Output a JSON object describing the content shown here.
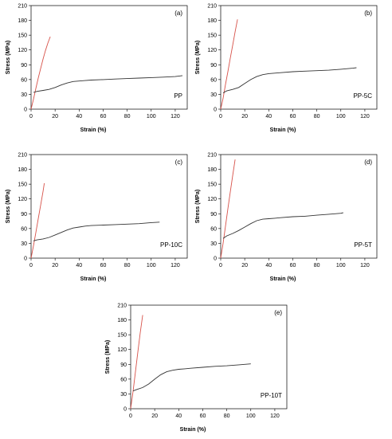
{
  "chart_data": [
    {
      "type": "line",
      "panel_letter": "(a)",
      "sample_label": "PP",
      "xlabel": "Strain (%)",
      "ylabel": "Stress (MPa)",
      "xlim": [
        0,
        130
      ],
      "ylim": [
        0,
        210
      ],
      "xticks": [
        0,
        20,
        40,
        60,
        80,
        100,
        120
      ],
      "yticks": [
        0,
        30,
        60,
        90,
        120,
        150,
        180,
        210
      ],
      "series": [
        {
          "color": "#d7524a",
          "x": [
            0,
            2,
            4,
            6,
            8,
            10,
            12,
            14,
            16
          ],
          "y": [
            0,
            20,
            42,
            63,
            83,
            102,
            119,
            134,
            147
          ]
        },
        {
          "color": "#333333",
          "x": [
            2,
            5,
            10,
            15,
            20,
            25,
            30,
            35,
            40,
            45,
            50,
            60,
            70,
            80,
            90,
            100,
            110,
            120,
            126
          ],
          "y": [
            34,
            36,
            38,
            40,
            44,
            49,
            53,
            56,
            57,
            58,
            59,
            60,
            61,
            62,
            63,
            64,
            65,
            66,
            68
          ]
        }
      ]
    },
    {
      "type": "line",
      "panel_letter": "(b)",
      "sample_label": "PP-5C",
      "xlabel": "Strain (%)",
      "ylabel": "Stress (MPa)",
      "xlim": [
        0,
        130
      ],
      "ylim": [
        0,
        210
      ],
      "xticks": [
        0,
        20,
        40,
        60,
        80,
        100,
        120
      ],
      "yticks": [
        0,
        30,
        60,
        90,
        120,
        150,
        180,
        210
      ],
      "series": [
        {
          "color": "#d7524a",
          "x": [
            0,
            2,
            4,
            6,
            8,
            10,
            12,
            14
          ],
          "y": [
            0,
            22,
            50,
            76,
            104,
            130,
            157,
            182
          ]
        },
        {
          "color": "#333333",
          "x": [
            2,
            5,
            10,
            15,
            20,
            25,
            30,
            35,
            40,
            45,
            50,
            60,
            70,
            80,
            90,
            100,
            110,
            113
          ],
          "y": [
            33,
            37,
            40,
            44,
            52,
            60,
            66,
            70,
            72,
            73,
            74,
            76,
            77,
            78,
            79,
            81,
            83,
            84
          ]
        }
      ]
    },
    {
      "type": "line",
      "panel_letter": "(c)",
      "sample_label": "PP-10C",
      "xlabel": "Strain (%)",
      "ylabel": "Stress (MPa)",
      "xlim": [
        0,
        130
      ],
      "ylim": [
        0,
        210
      ],
      "xticks": [
        0,
        20,
        40,
        60,
        80,
        100,
        120
      ],
      "yticks": [
        0,
        30,
        60,
        90,
        120,
        150,
        180,
        210
      ],
      "series": [
        {
          "color": "#d7524a",
          "x": [
            0,
            2,
            4,
            6,
            8,
            10,
            11
          ],
          "y": [
            0,
            25,
            52,
            80,
            108,
            136,
            152
          ]
        },
        {
          "color": "#333333",
          "x": [
            2,
            5,
            10,
            15,
            20,
            25,
            30,
            35,
            40,
            45,
            50,
            60,
            70,
            80,
            90,
            100,
            107
          ],
          "y": [
            35,
            37,
            39,
            42,
            47,
            52,
            57,
            61,
            63,
            65,
            66,
            67,
            68,
            69,
            70,
            72,
            73
          ]
        }
      ]
    },
    {
      "type": "line",
      "panel_letter": "(d)",
      "sample_label": "PP-5T",
      "xlabel": "Strain (%)",
      "ylabel": "Stress (MPa)",
      "xlim": [
        0,
        130
      ],
      "ylim": [
        0,
        210
      ],
      "xticks": [
        0,
        20,
        40,
        60,
        80,
        100,
        120
      ],
      "yticks": [
        0,
        30,
        60,
        90,
        120,
        150,
        180,
        210
      ],
      "series": [
        {
          "color": "#d7524a",
          "x": [
            0,
            2,
            4,
            6,
            8,
            10,
            12
          ],
          "y": [
            0,
            30,
            65,
            100,
            135,
            168,
            200
          ]
        },
        {
          "color": "#333333",
          "x": [
            2,
            5,
            10,
            15,
            20,
            25,
            30,
            35,
            40,
            45,
            50,
            60,
            70,
            80,
            90,
            100,
            102
          ],
          "y": [
            40,
            45,
            50,
            56,
            63,
            70,
            76,
            79,
            80,
            81,
            82,
            84,
            85,
            87,
            89,
            91,
            92
          ]
        }
      ]
    },
    {
      "type": "line",
      "panel_letter": "(e)",
      "sample_label": "PP-10T",
      "xlabel": "Strain (%)",
      "ylabel": "Stress (MPa)",
      "xlim": [
        0,
        130
      ],
      "ylim": [
        0,
        210
      ],
      "xticks": [
        0,
        20,
        40,
        60,
        80,
        100,
        120
      ],
      "yticks": [
        0,
        30,
        60,
        90,
        120,
        150,
        180,
        210
      ],
      "series": [
        {
          "color": "#d7524a",
          "x": [
            0,
            2,
            4,
            6,
            8,
            10
          ],
          "y": [
            0,
            35,
            75,
            115,
            155,
            190
          ]
        },
        {
          "color": "#333333",
          "x": [
            2,
            5,
            10,
            15,
            20,
            25,
            30,
            35,
            40,
            45,
            50,
            60,
            70,
            80,
            90,
            100
          ],
          "y": [
            36,
            39,
            43,
            50,
            60,
            69,
            75,
            78,
            80,
            81,
            82,
            84,
            86,
            87,
            89,
            91
          ]
        }
      ]
    }
  ]
}
